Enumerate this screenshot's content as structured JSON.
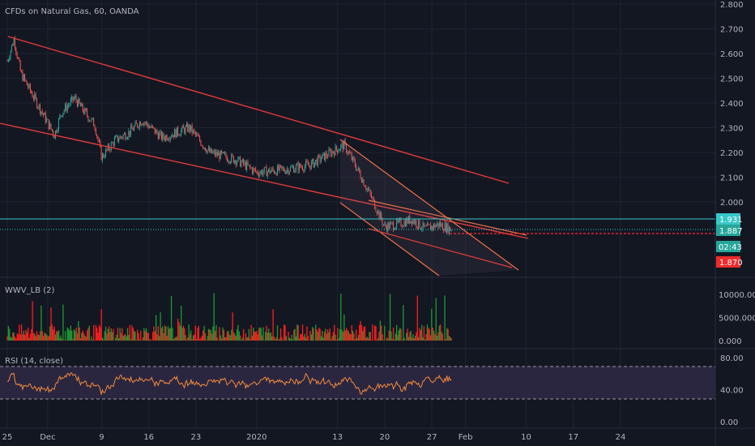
{
  "colors": {
    "background": "#131722",
    "grid": "#1f2330",
    "up": "#26a69a",
    "down": "#ef5350",
    "trendline": "#e33b3b",
    "channel": "#f0704a",
    "level": "#38c7c7",
    "rsi": "#f08a3c",
    "rsi_band": "#2b2640",
    "volume_up": "#1d9a33",
    "volume_down": "#ff1e1e"
  },
  "main": {
    "title": "CFDs on Natural Gas, 60, OANDA",
    "price_ticks": [
      "2.800",
      "2.700",
      "2.600",
      "2.500",
      "2.400",
      "2.300",
      "2.200",
      "2.100",
      "2.000"
    ],
    "tags": {
      "level": "1.931",
      "last": "1.887",
      "countdown": "02:43",
      "red": "1.870"
    }
  },
  "volume": {
    "title": "WWV_LB (2)",
    "ticks": [
      "10000.000",
      "5000.000",
      "0.000"
    ]
  },
  "rsi": {
    "title": "RSI (14, close)",
    "ticks": [
      "80.00",
      "40.00",
      "0.00"
    ]
  },
  "x_ticks": [
    "25",
    "Dec",
    "9",
    "16",
    "23",
    "2020",
    "13",
    "20",
    "27",
    "Feb",
    "10",
    "17",
    "24"
  ],
  "chart_data": [
    {
      "type": "candlestick",
      "title": "CFDs on Natural Gas, 60, OANDA",
      "x_ticks": [
        "25",
        "Dec",
        "9",
        "16",
        "23",
        "2020",
        "13",
        "20",
        "27",
        "Feb",
        "10",
        "17",
        "24"
      ],
      "y_ticks": [
        2.8,
        2.7,
        2.6,
        2.5,
        2.4,
        2.3,
        2.2,
        2.1,
        2.0
      ],
      "ylim": [
        1.72,
        2.8
      ],
      "anchors": [
        {
          "x": "2019-11-25",
          "close": 2.57
        },
        {
          "x": "2019-11-26",
          "close": 2.66
        },
        {
          "x": "2019-11-27",
          "close": 2.52
        },
        {
          "x": "2019-11-29",
          "close": 2.42
        },
        {
          "x": "2019-12-02",
          "close": 2.27
        },
        {
          "x": "2019-12-03",
          "close": 2.36
        },
        {
          "x": "2019-12-05",
          "close": 2.42
        },
        {
          "x": "2019-12-06",
          "close": 2.38
        },
        {
          "x": "2019-12-08",
          "close": 2.31
        },
        {
          "x": "2019-12-09",
          "close": 2.18
        },
        {
          "x": "2019-12-11",
          "close": 2.25
        },
        {
          "x": "2019-12-13",
          "close": 2.28
        },
        {
          "x": "2019-12-15",
          "close": 2.33
        },
        {
          "x": "2019-12-18",
          "close": 2.26
        },
        {
          "x": "2019-12-22",
          "close": 2.3
        },
        {
          "x": "2019-12-25",
          "close": 2.2
        },
        {
          "x": "2019-12-29",
          "close": 2.17
        },
        {
          "x": "2020-01-01",
          "close": 2.12
        },
        {
          "x": "2020-01-05",
          "close": 2.13
        },
        {
          "x": "2020-01-09",
          "close": 2.15
        },
        {
          "x": "2020-01-12",
          "close": 2.2
        },
        {
          "x": "2020-01-14",
          "close": 2.23
        },
        {
          "x": "2020-01-16",
          "close": 2.13
        },
        {
          "x": "2020-01-18",
          "close": 2.02
        },
        {
          "x": "2020-01-20",
          "close": 1.9
        },
        {
          "x": "2020-01-22",
          "close": 1.91
        },
        {
          "x": "2020-01-24",
          "close": 1.93
        },
        {
          "x": "2020-01-26",
          "close": 1.89
        },
        {
          "x": "2020-01-28",
          "close": 1.91
        },
        {
          "x": "2020-01-30",
          "close": 1.887
        }
      ],
      "horizontal_lines": [
        {
          "value": 1.931,
          "label": "1.931"
        },
        {
          "value": 1.887,
          "label": "1.887"
        },
        {
          "value": 1.87,
          "label": "1.870"
        }
      ]
    },
    {
      "type": "bar",
      "title": "WWV_LB (2)",
      "y_ticks": [
        10000,
        5000,
        0
      ],
      "ylim": [
        0,
        13000
      ]
    },
    {
      "type": "line",
      "title": "RSI (14, close)",
      "y_ticks": [
        80,
        40,
        0
      ],
      "ylim": [
        0,
        90
      ],
      "bands": [
        30,
        70
      ]
    }
  ]
}
